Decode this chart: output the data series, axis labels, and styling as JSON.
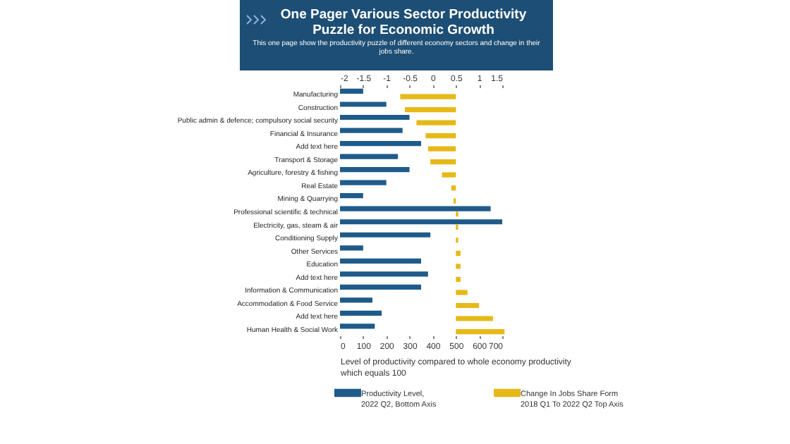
{
  "chart_data": {
    "type": "bar",
    "orientation": "horizontal",
    "title": "One Pager Various Sector Productivity Puzzle for Economic Growth",
    "subtitle": "This one page show the productivity puzzle of different economy sectors and change in their jobs share.",
    "xlabel": "Level of productivity compared to whole economy productivity which equals 100",
    "categories": [
      "Manufacturing",
      "Construction",
      "Public admin & defence; compulsory social security",
      "Financial & Insurance",
      "Add text here",
      "Transport & Storage",
      "Agriculture, forestry & fishing",
      "Real Estate",
      "Mining & Quarrying",
      "Professional scientific & technical",
      "Electricity, gas, steam & air",
      "Conditioning Supply",
      "Other Services",
      "Education",
      "Add text here",
      "Information & Communication",
      "Accommodation & Food Service",
      "Add text here",
      "Human Health & Social Work"
    ],
    "xlim": [
      0,
      700
    ],
    "xticks": [
      0,
      100,
      200,
      300,
      400,
      500,
      600,
      700
    ],
    "x2lim": [
      -2,
      1.5
    ],
    "x2ticks": [
      -2,
      -1.5,
      -1,
      -0.5,
      0,
      0.5,
      1,
      1.5
    ],
    "legend": "bottom",
    "series": [
      {
        "name": "Productivity Level, 2022 Q2, Bottom Axis",
        "color": "#1f5b8a",
        "values": [
          100,
          200,
          300,
          270,
          350,
          250,
          300,
          200,
          100,
          650,
          700,
          390,
          100,
          350,
          380,
          350,
          140,
          180,
          150
        ]
      },
      {
        "name": "Change In Jobs Share Form 2018 Q1 To 2022 Q2 Top Axis",
        "color": "#e6b918",
        "axis": "x2",
        "base": [
          0.5,
          0.5,
          0.5,
          0.5,
          0.5,
          0.5,
          0.5,
          0.5,
          0.5,
          0.5,
          0.5,
          0.5,
          0.5,
          0.5,
          0.5,
          0.5,
          0.5,
          0.5,
          0.5
        ],
        "values": [
          -1.2,
          -1.1,
          -0.85,
          -0.65,
          -0.6,
          -0.55,
          -0.3,
          -0.1,
          -0.05,
          0.05,
          0.05,
          0.05,
          0.1,
          0.1,
          0.1,
          0.25,
          0.5,
          0.8,
          1.05
        ]
      }
    ]
  }
}
